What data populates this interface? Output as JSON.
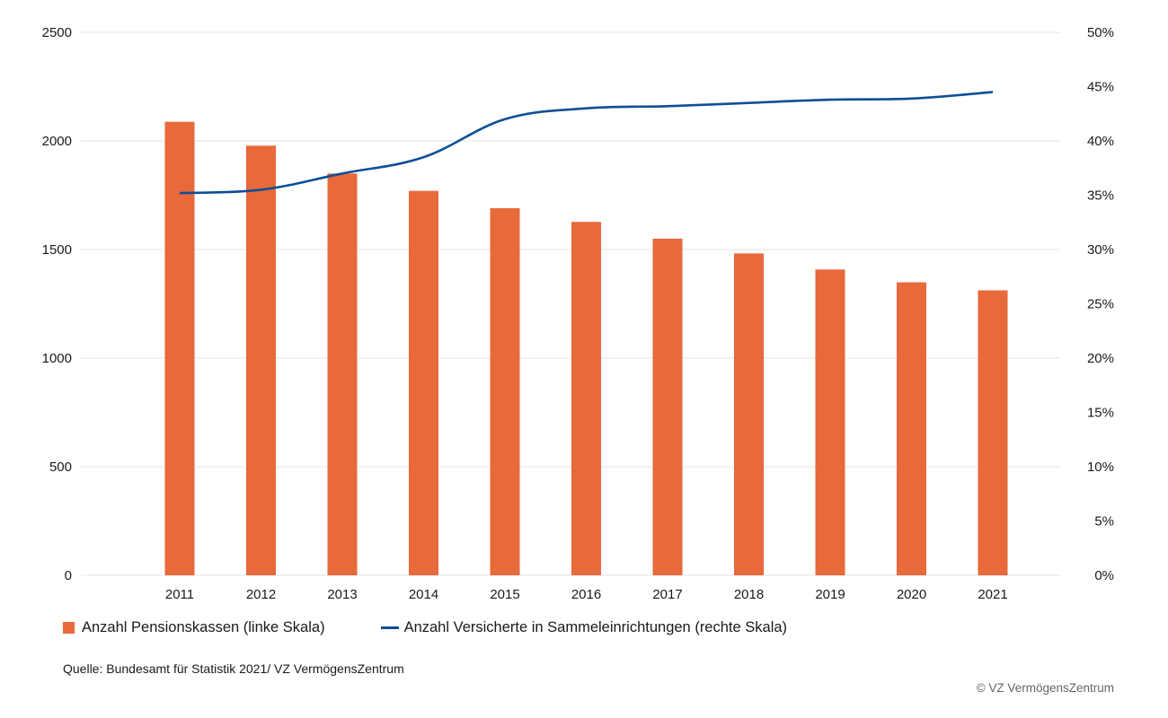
{
  "chart_data": {
    "type": "bar",
    "categories": [
      "2011",
      "2012",
      "2013",
      "2014",
      "2015",
      "2016",
      "2017",
      "2018",
      "2019",
      "2020",
      "2021"
    ],
    "series": [
      {
        "name": "Anzahl Pensionskassen (linke Skala)",
        "type": "bar",
        "axis": "left",
        "color": "#e8693a",
        "values": [
          2088,
          1978,
          1850,
          1770,
          1690,
          1627,
          1550,
          1482,
          1408,
          1349,
          1312
        ]
      },
      {
        "name": "Anzahl Versicherte in Sammeleinrichtungen (rechte Skala)",
        "type": "line",
        "axis": "right",
        "color": "#0d4f96",
        "values": [
          35.2,
          35.5,
          37.0,
          38.5,
          42.0,
          43.0,
          43.2,
          43.5,
          43.8,
          43.9,
          44.5
        ]
      }
    ],
    "y_left": {
      "min": 0,
      "max": 2500,
      "ticks": [
        "0",
        "500",
        "1000",
        "1500",
        "2000",
        "2500"
      ]
    },
    "y_right": {
      "min": 0,
      "max": 50,
      "ticks": [
        "0%",
        "5%",
        "10%",
        "15%",
        "20%",
        "25%",
        "30%",
        "35%",
        "40%",
        "45%",
        "50%"
      ]
    },
    "grid": true,
    "legend_position": "bottom-left"
  },
  "legend": {
    "bars": "Anzahl Pensionskassen (linke Skala)",
    "line": "Anzahl Versicherte in Sammeleinrichtungen (rechte Skala)"
  },
  "source": "Quelle: Bundesamt für Statistik 2021/ VZ VermögensZentrum",
  "copyright": "© VZ VermögensZentrum"
}
